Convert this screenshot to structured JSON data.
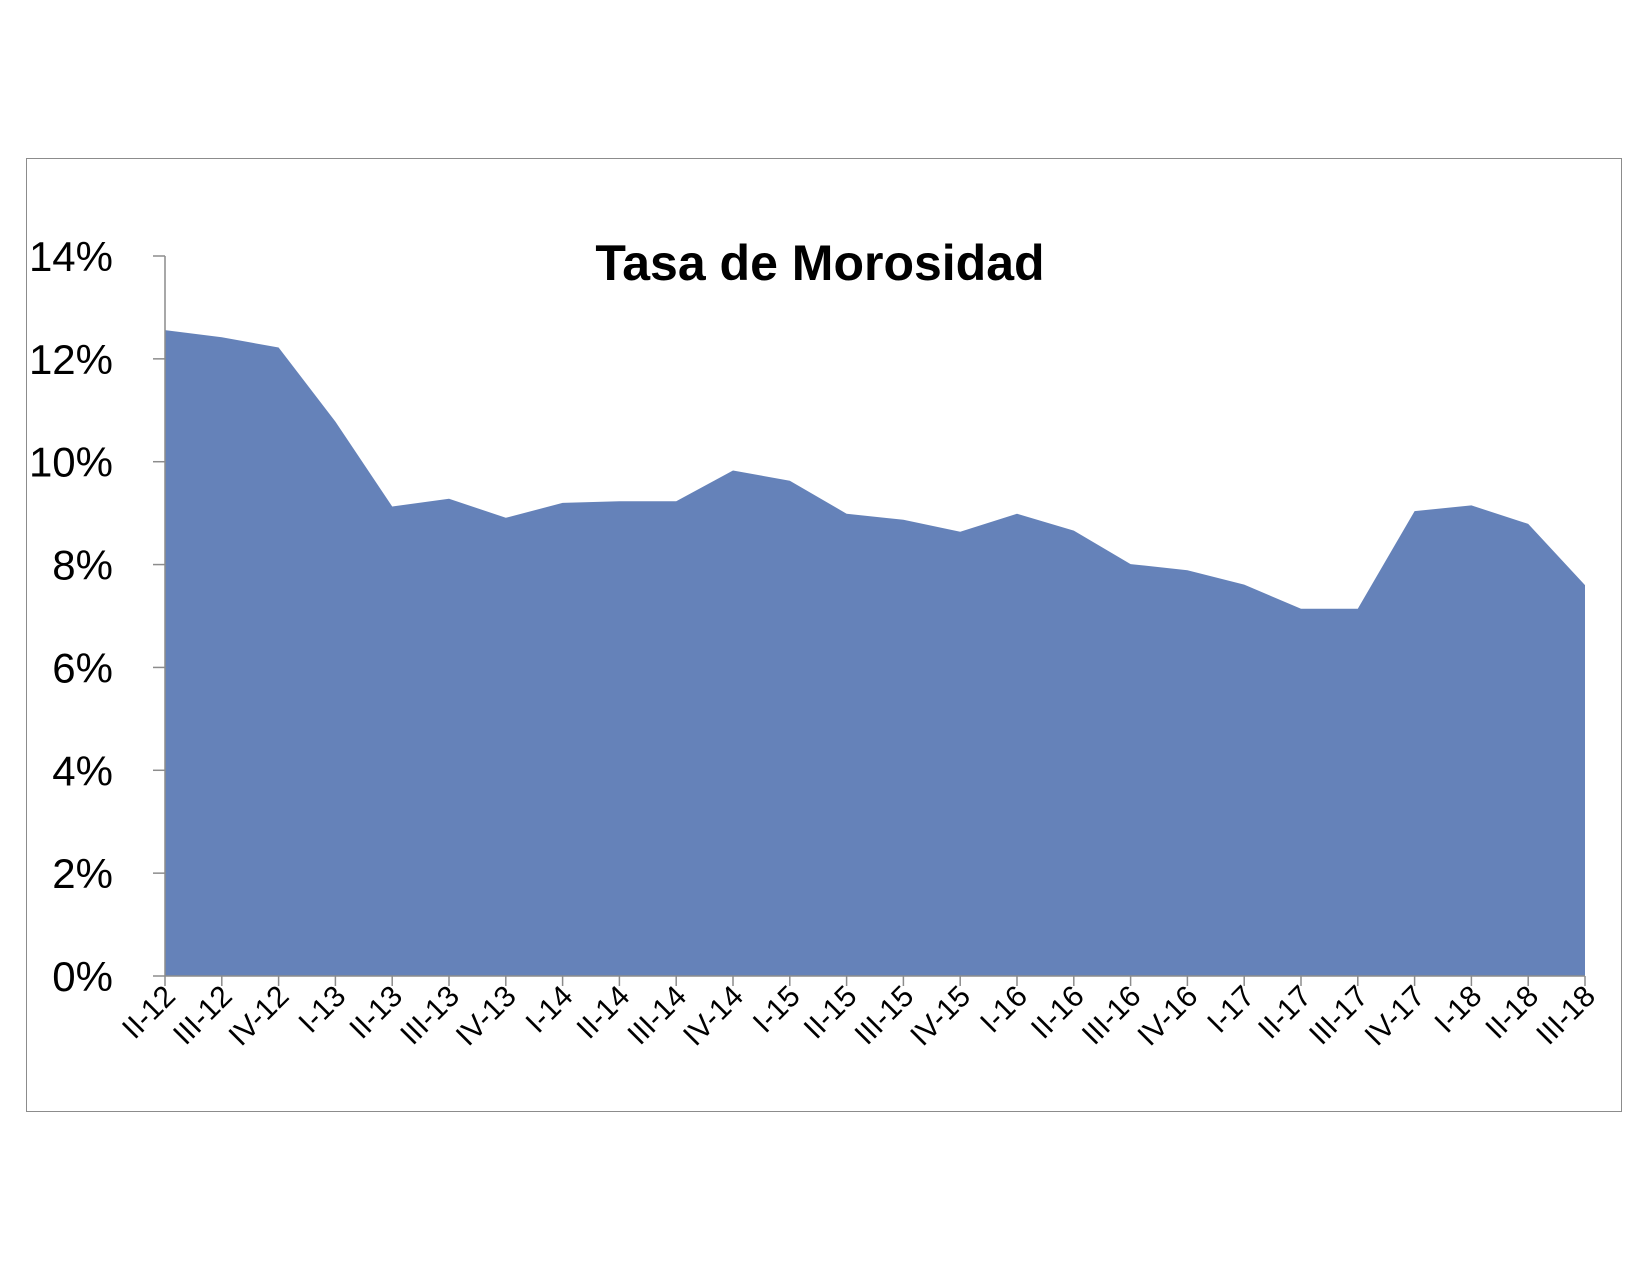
{
  "chart_data": {
    "type": "area",
    "title": "Tasa de Morosidad",
    "xlabel": "",
    "ylabel": "",
    "ylim": [
      0,
      0.14
    ],
    "yticks": [
      0,
      0.02,
      0.04,
      0.06,
      0.08,
      0.1,
      0.12,
      0.14
    ],
    "ytick_labels": [
      "0%",
      "2%",
      "4%",
      "6%",
      "8%",
      "10%",
      "12%",
      "14%"
    ],
    "grid": false,
    "legend": "none",
    "categories": [
      "II-12",
      "III-12",
      "IV-12",
      "I-13",
      "II-13",
      "III-13",
      "IV-13",
      "I-14",
      "II-14",
      "III-14",
      "IV-14",
      "I-15",
      "II-15",
      "III-15",
      "IV-15",
      "I-16",
      "II-16",
      "III-16",
      "IV-16",
      "I-17",
      "II-17",
      "III-17",
      "IV-17",
      "I-18",
      "II-18",
      "III-18"
    ],
    "series": [
      {
        "values": [
          0.1256,
          0.1242,
          0.1222,
          0.1078,
          0.0913,
          0.0928,
          0.0891,
          0.092,
          0.0923,
          0.0923,
          0.0983,
          0.0963,
          0.0899,
          0.0887,
          0.0864,
          0.0899,
          0.0866,
          0.0801,
          0.0789,
          0.0761,
          0.0714,
          0.0714,
          0.0904,
          0.0915,
          0.0879,
          0.076
        ],
        "color": "#6582b9"
      }
    ]
  }
}
